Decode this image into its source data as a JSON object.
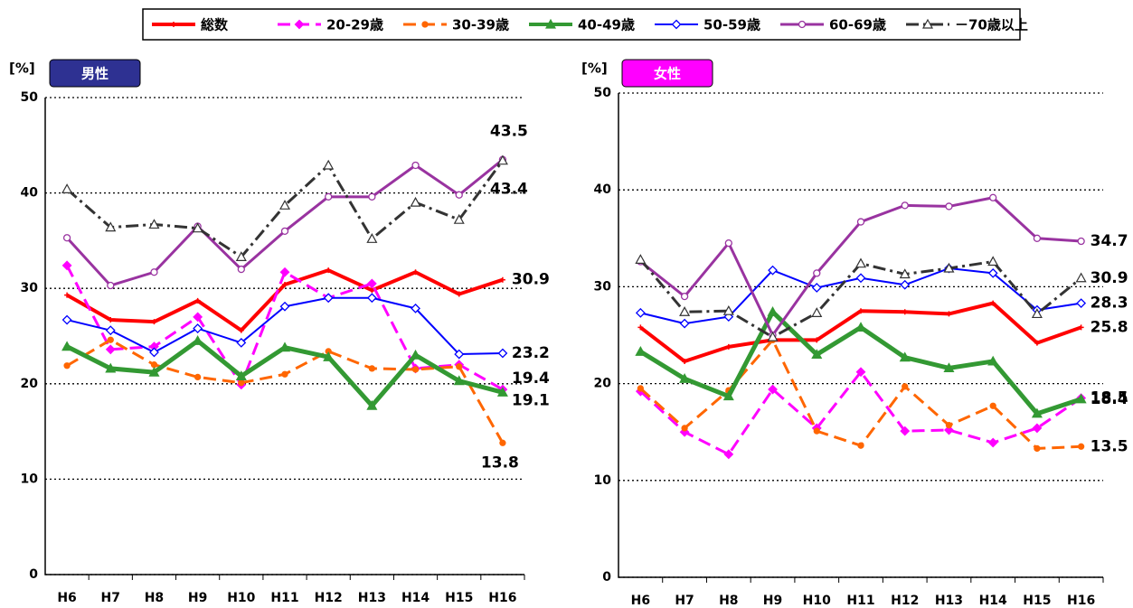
{
  "chart_data": [
    {
      "type": "line",
      "title": "男性",
      "title_color": "#2e3192",
      "y_unit": "[%]",
      "categories": [
        "H6",
        "H7",
        "H8",
        "H9",
        "H10",
        "H11",
        "H12",
        "H13",
        "H14",
        "H15",
        "H16"
      ],
      "ylim": [
        0,
        50
      ],
      "yticks": [
        0,
        10,
        20,
        30,
        40,
        50
      ],
      "grid": true,
      "series": [
        {
          "name": "総数",
          "color": "#ff0000",
          "line_style": "solid",
          "width": 4,
          "marker": "plus",
          "values": [
            29.3,
            26.7,
            26.5,
            28.7,
            25.6,
            30.4,
            31.9,
            29.8,
            31.7,
            29.4,
            30.9
          ]
        },
        {
          "name": "20-29歳",
          "color": "#ff00ff",
          "line_style": "dashed",
          "width": 3,
          "marker": "diamond",
          "values": [
            32.4,
            23.6,
            23.9,
            27.0,
            19.9,
            31.7,
            29.0,
            30.5,
            21.6,
            22.0,
            19.4
          ]
        },
        {
          "name": "30-39歳",
          "color": "#ff6600",
          "line_style": "dashed",
          "width": 3,
          "marker": "circle",
          "values": [
            21.9,
            24.6,
            22.0,
            20.7,
            20.1,
            21.0,
            23.4,
            21.6,
            21.5,
            21.8,
            13.8
          ]
        },
        {
          "name": "40-49歳",
          "color": "#339933",
          "line_style": "solid",
          "width": 5,
          "marker": "triangle",
          "values": [
            23.9,
            21.6,
            21.2,
            24.5,
            20.8,
            23.8,
            22.8,
            17.7,
            23.0,
            20.3,
            19.1
          ]
        },
        {
          "name": "50-59歳",
          "color": "#0000ff",
          "line_style": "solid",
          "width": 2,
          "marker": "open-diamond",
          "values": [
            26.7,
            25.6,
            23.3,
            25.8,
            24.3,
            28.1,
            29.0,
            29.0,
            27.9,
            23.1,
            23.2
          ]
        },
        {
          "name": "60-69歳",
          "color": "#9933a0",
          "line_style": "solid",
          "width": 3,
          "marker": "open-circle",
          "values": [
            35.3,
            30.3,
            31.7,
            36.5,
            32.0,
            36.0,
            39.6,
            39.6,
            42.9,
            39.8,
            43.5
          ]
        },
        {
          "name": "－70歳以上",
          "color": "#333333",
          "line_style": "dashdot",
          "width": 3,
          "marker": "open-triangle",
          "values": [
            40.4,
            36.4,
            36.7,
            36.3,
            33.3,
            38.7,
            42.9,
            35.2,
            39.0,
            37.2,
            43.4
          ]
        }
      ]
    },
    {
      "type": "line",
      "title": "女性",
      "title_color": "#ff00ff",
      "y_unit": "[%]",
      "categories": [
        "H6",
        "H7",
        "H8",
        "H9",
        "H10",
        "H11",
        "H12",
        "H13",
        "H14",
        "H15",
        "H16"
      ],
      "ylim": [
        0,
        50
      ],
      "yticks": [
        0,
        10,
        20,
        30,
        40,
        50
      ],
      "grid": true,
      "series": [
        {
          "values": [
            25.8,
            22.3,
            23.8,
            24.5,
            24.5,
            27.5,
            27.4,
            27.2,
            28.3,
            24.2,
            25.8
          ]
        },
        {
          "values": [
            19.2,
            15.0,
            12.7,
            19.4,
            15.4,
            21.2,
            15.1,
            15.2,
            13.9,
            15.4,
            18.5
          ]
        },
        {
          "values": [
            19.5,
            15.4,
            19.3,
            24.5,
            15.1,
            13.6,
            19.7,
            15.7,
            17.7,
            13.3,
            13.5
          ]
        },
        {
          "values": [
            23.3,
            20.5,
            18.7,
            27.4,
            23.0,
            25.8,
            22.7,
            21.6,
            22.3,
            16.9,
            18.4
          ]
        },
        {
          "values": [
            27.3,
            26.2,
            26.9,
            31.7,
            29.9,
            30.9,
            30.2,
            31.9,
            31.4,
            27.6,
            28.3
          ]
        },
        {
          "values": [
            32.6,
            29.0,
            34.5,
            25.0,
            31.4,
            36.7,
            38.4,
            38.3,
            39.2,
            35.0,
            34.7
          ]
        },
        {
          "values": [
            32.8,
            27.4,
            27.5,
            24.8,
            27.3,
            32.4,
            31.3,
            31.9,
            32.6,
            27.2,
            30.9
          ]
        }
      ]
    }
  ]
}
